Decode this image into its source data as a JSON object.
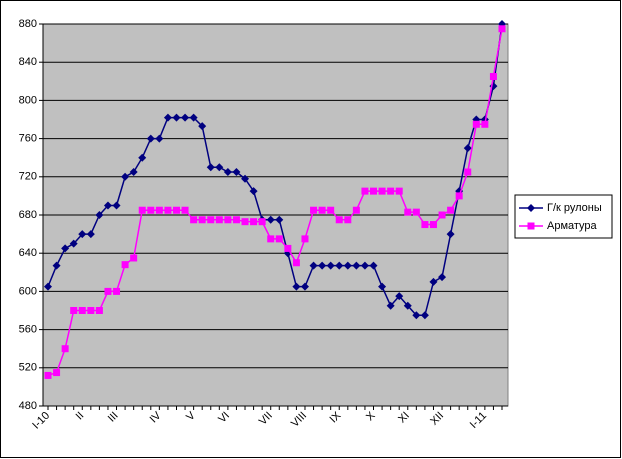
{
  "chart_data": {
    "type": "line",
    "categories": [
      "I-10",
      null,
      null,
      null,
      "II",
      null,
      null,
      null,
      "III",
      null,
      null,
      null,
      null,
      "IV",
      null,
      null,
      null,
      "V",
      null,
      null,
      null,
      "VI",
      null,
      null,
      null,
      null,
      "VII",
      null,
      null,
      null,
      "VIII",
      null,
      null,
      null,
      "IX",
      null,
      null,
      null,
      "X",
      null,
      null,
      null,
      "XI",
      null,
      null,
      null,
      "XII",
      null,
      null,
      null,
      null,
      "I-11",
      null,
      null
    ],
    "series": [
      {
        "name": "Г/к рулоны",
        "color": "#000080",
        "marker": "diamond",
        "values": [
          605,
          627,
          645,
          650,
          660,
          660,
          680,
          690,
          690,
          720,
          725,
          740,
          760,
          760,
          782,
          782,
          782,
          782,
          773,
          730,
          730,
          725,
          725,
          718,
          705,
          675,
          675,
          675,
          640,
          605,
          605,
          627,
          627,
          627,
          627,
          627,
          627,
          627,
          627,
          605,
          585,
          595,
          585,
          575,
          575,
          610,
          615,
          660,
          705,
          750,
          780,
          780,
          815,
          880
        ]
      },
      {
        "name": "Арматура",
        "color": "#ff00ff",
        "marker": "square",
        "values": [
          512,
          515,
          540,
          580,
          580,
          580,
          580,
          600,
          600,
          628,
          635,
          685,
          685,
          685,
          685,
          685,
          685,
          675,
          675,
          675,
          675,
          675,
          675,
          673,
          673,
          673,
          655,
          655,
          645,
          630,
          655,
          685,
          685,
          685,
          675,
          675,
          685,
          705,
          705,
          705,
          705,
          705,
          683,
          683,
          670,
          670,
          680,
          685,
          700,
          725,
          775,
          775,
          825,
          875
        ]
      }
    ],
    "ylim": [
      480,
      880
    ],
    "yticks": [
      480,
      520,
      560,
      600,
      640,
      680,
      720,
      760,
      800,
      840,
      880
    ],
    "grid": true,
    "legend": "right",
    "plot_background": "#c0c0c0"
  }
}
